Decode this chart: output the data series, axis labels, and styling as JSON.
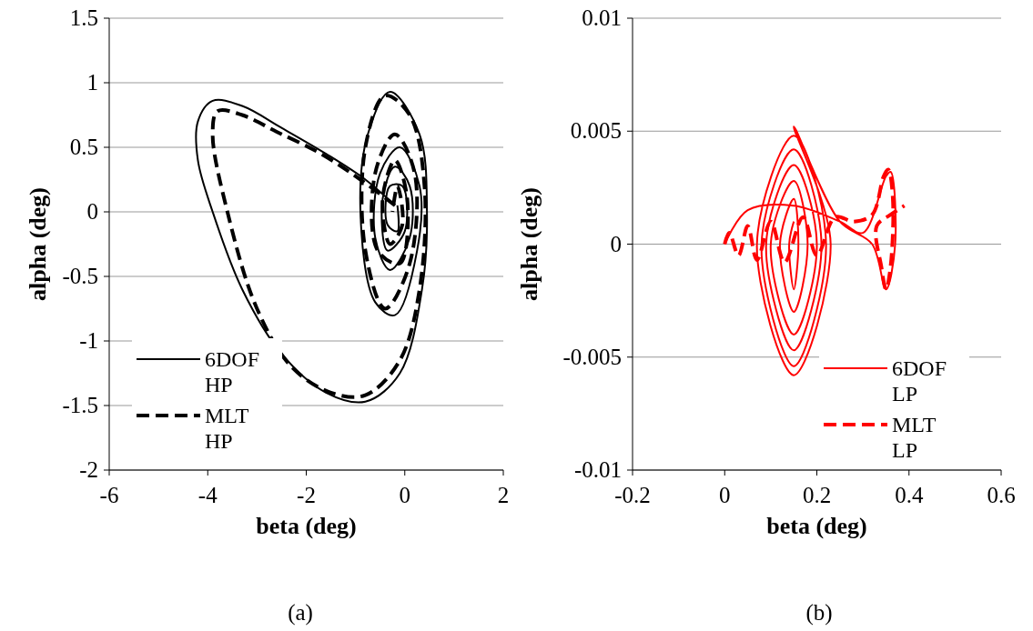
{
  "chart_data": [
    {
      "type": "line",
      "xlabel": "beta (deg)",
      "ylabel": "alpha (deg)",
      "xlim": [
        -6,
        2
      ],
      "xticks": [
        -6,
        -4,
        -2,
        0,
        2
      ],
      "ylim": [
        -2,
        1.5
      ],
      "yticks": [
        -2,
        -1.5,
        -1,
        -0.5,
        0,
        0.5,
        1,
        1.5
      ],
      "grid": "y",
      "legend": "bottom left",
      "annotations": [
        "(a)"
      ],
      "series": [
        {
          "name": "6DOF HP",
          "color": "#000000",
          "line_style": "solid",
          "x": [
            -0.2,
            -0.8,
            -1.6,
            -2.5,
            -3.3,
            -3.9,
            -4.2,
            -4.2,
            -3.9,
            -3.3,
            -2.5,
            -1.6,
            -0.8,
            -0.1,
            0.35,
            0.45,
            0.3,
            -0.3,
            -0.75,
            -0.9,
            -0.6,
            -0.2,
            0.25,
            0.3,
            -0.1,
            -0.5,
            -0.6,
            -0.3,
            0.1,
            0.1,
            -0.2,
            -0.45,
            -0.35,
            0,
            -0.05,
            -0.3,
            -0.35,
            -0.15,
            -0.15
          ],
          "values": [
            0.05,
            0.25,
            0.45,
            0.65,
            0.82,
            0.86,
            0.7,
            0.4,
            0,
            -0.6,
            -1.1,
            -1.4,
            -1.47,
            -1.25,
            -0.6,
            0,
            0.6,
            0.93,
            0.6,
            0,
            -0.7,
            -0.8,
            -0.3,
            0.2,
            0.5,
            0.3,
            -0.2,
            -0.45,
            -0.2,
            0.2,
            0.35,
            0.1,
            -0.3,
            -0.15,
            0.2,
            0.2,
            -0.1,
            -0.15,
            0.05
          ]
        },
        {
          "name": "MLT HP",
          "color": "#000000",
          "line_style": "dashed",
          "x": [
            -0.2,
            -0.9,
            -1.7,
            -2.6,
            -3.3,
            -3.8,
            -3.9,
            -3.6,
            -3,
            -2.3,
            -1.5,
            -0.8,
            -0.1,
            0.3,
            0.4,
            0.1,
            -0.4,
            -0.8,
            -0.8,
            -0.4,
            0.1,
            0.2,
            -0.2,
            -0.6,
            -0.55,
            -0.1,
            0.05,
            -0.2,
            -0.45,
            -0.3,
            -0.05,
            -0.15,
            -0.25
          ],
          "values": [
            0.05,
            0.25,
            0.45,
            0.62,
            0.75,
            0.78,
            0.6,
            0,
            -0.75,
            -1.2,
            -1.4,
            -1.42,
            -1.15,
            -0.6,
            0.2,
            0.75,
            0.9,
            0.5,
            -0.3,
            -0.75,
            -0.4,
            0.3,
            0.6,
            0.3,
            -0.3,
            -0.4,
            0.1,
            0.4,
            0.1,
            -0.25,
            -0.1,
            0.2,
            0
          ]
        }
      ]
    },
    {
      "type": "line",
      "xlabel": "beta (deg)",
      "ylabel": "alpha (deg)",
      "xlim": [
        -0.2,
        0.6
      ],
      "xticks": [
        -0.2,
        0,
        0.2,
        0.4,
        0.6
      ],
      "ylim": [
        -0.01,
        0.01
      ],
      "yticks": [
        -0.01,
        -0.005,
        0,
        0.005,
        0.01
      ],
      "grid": "y",
      "legend": "bottom right",
      "annotations": [
        "(b)"
      ],
      "series": [
        {
          "name": "6DOF LP",
          "color": "#ff0000",
          "line_style": "solid",
          "x": [
            0,
            0.05,
            0.15,
            0.25,
            0.3,
            0.35,
            0.36,
            0.37,
            0.35,
            0.32,
            0.25,
            0.15,
            0.23,
            0.15,
            0.07,
            0.15,
            0.22,
            0.15,
            0.08,
            0.15,
            0.21,
            0.15,
            0.09,
            0.15,
            0.2,
            0.15,
            0.1,
            0.15,
            0.18,
            0.15,
            0.12,
            0.15,
            0.16,
            0.15,
            0.14,
            0.15
          ],
          "values": [
            0,
            0.0015,
            0.0017,
            0.001,
            0.0005,
            0.003,
            0.0032,
            0,
            -0.002,
            0,
            0.001,
            0.0052,
            0,
            -0.0058,
            0,
            0.0048,
            0,
            -0.0054,
            0,
            0.0042,
            0,
            -0.0047,
            0,
            0.0035,
            0,
            -0.004,
            0,
            0.0028,
            0,
            -0.003,
            0,
            0.002,
            0,
            -0.002,
            0,
            0.001
          ]
        },
        {
          "name": "MLT LP",
          "color": "#ff0000",
          "line_style": "dashed",
          "x": [
            0,
            0.01,
            0.03,
            0.05,
            0.07,
            0.1,
            0.13,
            0.17,
            0.2,
            0.24,
            0.28,
            0.32,
            0.345,
            0.355,
            0.365,
            0.36,
            0.35,
            0.34,
            0.33,
            0.36,
            0.39
          ],
          "values": [
            0,
            0.0005,
            -0.0005,
            0.0008,
            -0.0007,
            0.001,
            -0.0008,
            0.0012,
            -0.0005,
            0.0012,
            0.001,
            0.0013,
            0.003,
            0.0033,
            0.002,
            -0.001,
            -0.002,
            -0.001,
            0.0008,
            0.0013,
            0.0017
          ]
        }
      ]
    }
  ]
}
